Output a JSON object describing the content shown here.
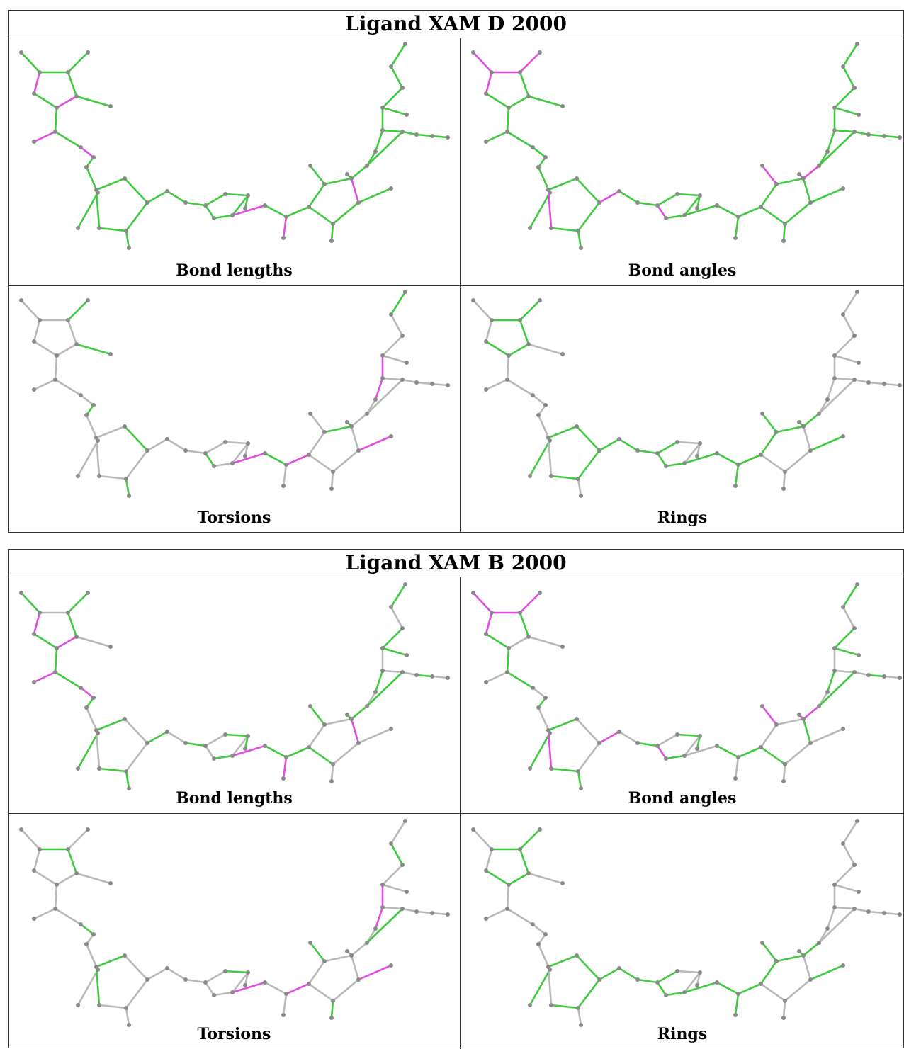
{
  "colors": {
    "grey": "#b9b9b9",
    "green": "#3fca3f",
    "magenta": "#e04de0",
    "atom": "#8a8a8a"
  },
  "blocks": [
    {
      "title": "Ligand XAM D 2000",
      "panels": [
        {
          "caption": "Bond lengths",
          "mode": "lengths"
        },
        {
          "caption": "Bond angles",
          "mode": "angles"
        },
        {
          "caption": "Torsions",
          "mode": "torsions"
        },
        {
          "caption": "Rings",
          "mode": "rings"
        }
      ]
    },
    {
      "title": "Ligand XAM B 2000",
      "panels": [
        {
          "caption": "Bond lengths",
          "mode": "lengths"
        },
        {
          "caption": "Bond angles",
          "mode": "angles"
        },
        {
          "caption": "Torsions",
          "mode": "torsions"
        },
        {
          "caption": "Rings",
          "mode": "rings"
        }
      ]
    }
  ]
}
